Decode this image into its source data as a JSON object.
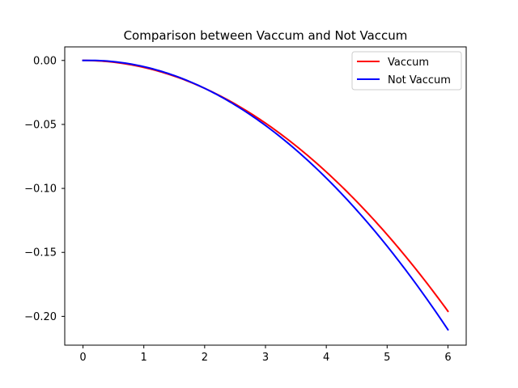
{
  "chart_data": {
    "type": "line",
    "title": "Comparison between Vaccum and Not Vaccum",
    "xlabel": "",
    "ylabel": "",
    "xlim": [
      -0.3,
      6.3
    ],
    "ylim": [
      -0.2225,
      0.0106
    ],
    "x_ticks": [
      0,
      1,
      2,
      3,
      4,
      5,
      6
    ],
    "x_tick_labels": [
      "0",
      "1",
      "2",
      "3",
      "4",
      "5",
      "6"
    ],
    "y_ticks": [
      0.0,
      -0.05,
      -0.1,
      -0.15,
      -0.2
    ],
    "y_tick_labels": [
      "0.00",
      "−0.05",
      "−0.10",
      "−0.15",
      "−0.20"
    ],
    "grid": false,
    "legend_position": "upper right",
    "series": [
      {
        "name": "Vaccum",
        "color": "#ff0000",
        "x": [
          0,
          0.5,
          1,
          1.5,
          2,
          2.5,
          3,
          3.5,
          4,
          4.5,
          5,
          5.5,
          6
        ],
        "y": [
          0,
          -0.0014,
          -0.0054,
          -0.0123,
          -0.0218,
          -0.034,
          -0.049,
          -0.0667,
          -0.0871,
          -0.1103,
          -0.1361,
          -0.1647,
          -0.196
        ]
      },
      {
        "name": "Not Vaccum",
        "color": "#0000ff",
        "x": [
          0,
          0.5,
          1,
          1.5,
          2,
          2.5,
          3,
          3.5,
          4,
          4.5,
          5,
          5.5,
          6
        ],
        "y": [
          0,
          -0.0014,
          -0.0055,
          -0.0124,
          -0.0222,
          -0.035,
          -0.051,
          -0.07,
          -0.0915,
          -0.116,
          -0.144,
          -0.176,
          -0.212
        ]
      }
    ]
  }
}
